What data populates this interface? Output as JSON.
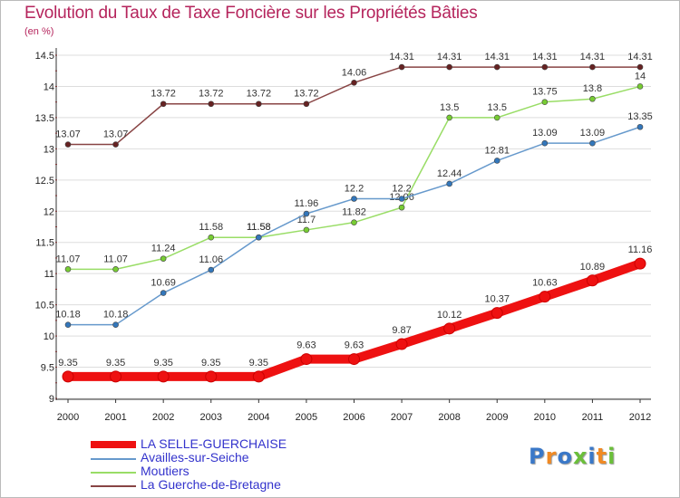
{
  "title": "Evolution du Taux de Taxe Foncière sur les Propriétés Bâties",
  "subtitle": "(en %)",
  "brand": "Proxiti",
  "colors": {
    "title": "#b5245c",
    "legend_text": "#3333cc",
    "grid": "#dddddd",
    "axis": "#333333"
  },
  "chart_data": {
    "type": "line",
    "x": [
      "2000",
      "2001",
      "2002",
      "2003",
      "2004",
      "2005",
      "2006",
      "2007",
      "2008",
      "2009",
      "2010",
      "2011",
      "2012"
    ],
    "y_ticks": [
      "9",
      "9.5",
      "10",
      "10.5",
      "11",
      "11.5",
      "12",
      "12.5",
      "13",
      "13.5",
      "14",
      "14.5"
    ],
    "ylim": [
      9,
      14.5
    ],
    "grid": "horizontal",
    "legend_placement": "bottom-left",
    "series": [
      {
        "name": "LA SELLE-GUERCHAISE",
        "color": "#ee1111",
        "marker": "#ee1111",
        "values": [
          9.35,
          9.35,
          9.35,
          9.35,
          9.35,
          9.63,
          9.63,
          9.87,
          10.12,
          10.37,
          10.63,
          10.89,
          11.16
        ],
        "labels": [
          "9.35",
          "9.35",
          "9.35",
          "9.35",
          "9.35",
          "9.63",
          "9.63",
          "9.87",
          "10.12",
          "10.37",
          "10.63",
          "10.89",
          "11.16"
        ]
      },
      {
        "name": "Availles-sur-Seiche",
        "color": "#6699cc",
        "marker": "#3377bb",
        "values": [
          10.18,
          10.18,
          10.69,
          11.06,
          11.58,
          11.96,
          12.2,
          12.2,
          12.44,
          12.81,
          13.09,
          13.09,
          13.35
        ],
        "labels": [
          "10.18",
          "10.18",
          "10.69",
          "11.06",
          "11.58",
          "11.96",
          "12.2",
          "12.2",
          "12.44",
          "12.81",
          "13.09",
          "13.09",
          "13.35"
        ]
      },
      {
        "name": "Moutiers",
        "color": "#99dd66",
        "marker": "#77cc33",
        "values": [
          11.07,
          11.07,
          11.24,
          11.58,
          11.58,
          11.7,
          11.82,
          12.06,
          13.5,
          13.5,
          13.75,
          13.8,
          14
        ],
        "labels": [
          "11.07",
          "11.07",
          "11.24",
          "11.58",
          "11.58",
          "11.7",
          "11.82",
          "12.06",
          "13.5",
          "13.5",
          "13.75",
          "13.8",
          "14"
        ]
      },
      {
        "name": "La Guerche-de-Bretagne",
        "color": "#884444",
        "marker": "#662222",
        "values": [
          13.07,
          13.07,
          13.72,
          13.72,
          13.72,
          13.72,
          14.06,
          14.31,
          14.31,
          14.31,
          14.31,
          14.31,
          14.31
        ],
        "labels": [
          "13.07",
          "13.07",
          "13.72",
          "13.72",
          "13.72",
          "13.72",
          "14.06",
          "14.31",
          "14.31",
          "14.31",
          "14.31",
          "14.31",
          "14.31"
        ]
      }
    ]
  }
}
